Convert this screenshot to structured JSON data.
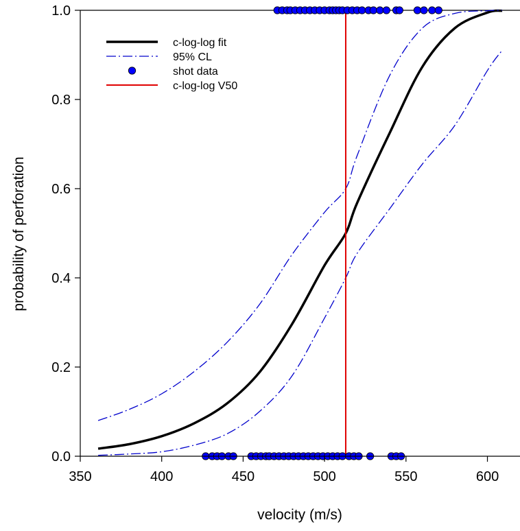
{
  "chart_data": {
    "type": "line",
    "title": "",
    "xlabel": "velocity (m/s)",
    "ylabel": "probability of perforation",
    "xlim": [
      350,
      620
    ],
    "ylim": [
      0,
      1
    ],
    "xticks": [
      350,
      400,
      450,
      500,
      550,
      600
    ],
    "yticks": [
      0.0,
      0.2,
      0.4,
      0.6,
      0.8,
      1.0
    ],
    "xtick_labels": [
      "350",
      "400",
      "450",
      "500",
      "550",
      "600"
    ],
    "ytick_labels": [
      "0.0",
      "0.2",
      "0.4",
      "0.6",
      "0.8",
      "1.0"
    ],
    "grid": false,
    "legend_position": "top-left",
    "legend": [
      {
        "label": "c-log-log fit",
        "style": "line",
        "color": "#000000"
      },
      {
        "label": "95% CL",
        "style": "dashdot",
        "color": "#0000cc"
      },
      {
        "label": "shot data",
        "style": "marker",
        "color": "#0000ff"
      },
      {
        "label": "c-log-log V50",
        "style": "line",
        "color": "#e00000"
      }
    ],
    "series": [
      {
        "name": "c-log-log fit",
        "color": "#000000",
        "x": [
          361,
          380,
          400,
          420,
          440,
          460,
          480,
          500,
          513,
          520,
          540,
          560,
          580,
          600,
          609
        ],
        "y": [
          0.017,
          0.027,
          0.045,
          0.074,
          0.118,
          0.188,
          0.296,
          0.428,
          0.5,
          0.568,
          0.725,
          0.873,
          0.96,
          0.995,
          0.999
        ]
      },
      {
        "name": "95% CL (upper)",
        "color": "#0000cc",
        "x": [
          361,
          380,
          400,
          420,
          440,
          460,
          480,
          500,
          513,
          520,
          540,
          560,
          580,
          600,
          609
        ],
        "y": [
          0.08,
          0.105,
          0.14,
          0.19,
          0.255,
          0.34,
          0.452,
          0.547,
          0.6,
          0.674,
          0.854,
          0.96,
          0.993,
          0.999,
          1.0
        ]
      },
      {
        "name": "95% CL (lower)",
        "color": "#0000cc",
        "x": [
          361,
          380,
          400,
          420,
          440,
          460,
          480,
          500,
          513,
          520,
          540,
          560,
          580,
          600,
          609
        ],
        "y": [
          0.002,
          0.005,
          0.01,
          0.025,
          0.05,
          0.1,
          0.18,
          0.31,
          0.4,
          0.455,
          0.555,
          0.655,
          0.742,
          0.865,
          0.91
        ]
      }
    ],
    "v50": 513,
    "shot_data": {
      "color": "#0000ff",
      "perforation": [
        471,
        474,
        477,
        479,
        482,
        485,
        488,
        491,
        494,
        497,
        500,
        503,
        505,
        507,
        509,
        511,
        514,
        517,
        520,
        523,
        527,
        530,
        534,
        538,
        544,
        546,
        557,
        561,
        566,
        570
      ],
      "no_perforation": [
        427,
        431,
        434,
        437,
        441,
        444,
        455,
        458,
        461,
        464,
        466,
        469,
        472,
        475,
        478,
        481,
        484,
        487,
        490,
        493,
        496,
        499,
        502,
        505,
        508,
        511,
        515,
        518,
        521,
        528,
        541,
        544,
        547
      ]
    }
  }
}
